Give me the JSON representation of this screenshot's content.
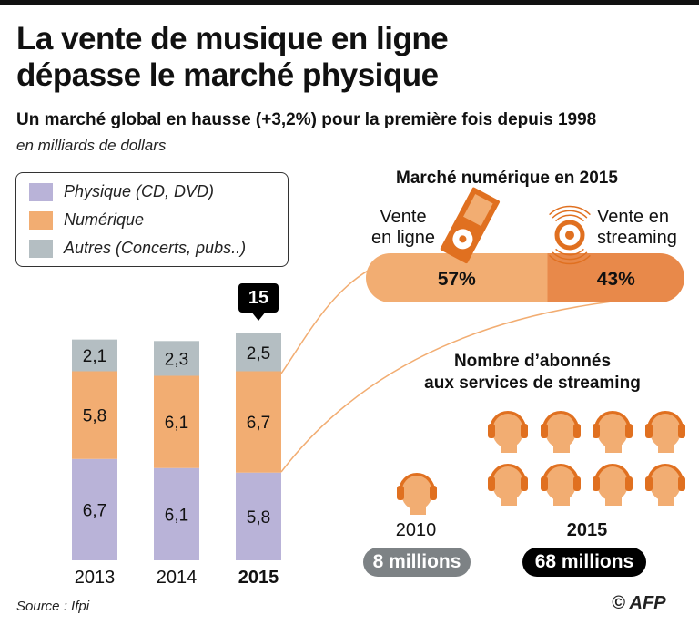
{
  "title": [
    "La vente de musique en ligne",
    "dépasse le marché physique"
  ],
  "subtitle": "Un marché global en hausse (+3,2%) pour la première fois depuis 1998",
  "unit": "en milliards de dollars",
  "source": "Source : Ifpi",
  "credit": "© AFP",
  "chart_data": [
    {
      "type": "bar",
      "stacked": true,
      "categories": [
        "2013",
        "2014",
        "2015"
      ],
      "series": [
        {
          "name": "Physique (CD, DVD)",
          "color": "#b9b3d8",
          "values": [
            6.7,
            6.1,
            5.8
          ],
          "labels": [
            "6,7",
            "6,1",
            "5,8"
          ]
        },
        {
          "name": "Numérique",
          "color": "#f2ad72",
          "values": [
            5.8,
            6.1,
            6.7
          ],
          "labels": [
            "5,8",
            "6,1",
            "6,7"
          ]
        },
        {
          "name": "Autres (Concerts, pubs..)",
          "color": "#b4bec2",
          "values": [
            2.1,
            2.3,
            2.5
          ],
          "labels": [
            "2,1",
            "2,3",
            "2,5"
          ]
        }
      ],
      "total_callout": {
        "category": "2015",
        "label": "15"
      },
      "legend": "top-left"
    },
    {
      "type": "bar",
      "stacked": true,
      "title": "Marché numérique en 2015",
      "categories": [
        "Vente en ligne",
        "Vente en streaming"
      ],
      "values": [
        57,
        43
      ],
      "labels": [
        "57%",
        "43%"
      ],
      "colors": [
        "#f2ad72",
        "#e8894a"
      ]
    },
    {
      "type": "pictogram",
      "title": "Nombre d’abonnés aux services de streaming",
      "categories": [
        "2010",
        "2015"
      ],
      "values": [
        8,
        68
      ],
      "labels": [
        "8 millions",
        "68 millions"
      ],
      "icon": "headphones-head-icon"
    }
  ],
  "segment_labels": {
    "online": [
      "Vente",
      "en ligne"
    ],
    "streaming": [
      "Vente en",
      "streaming"
    ]
  },
  "subscribers_title": [
    "Nombre d’abonnés",
    "aux services de streaming"
  ]
}
